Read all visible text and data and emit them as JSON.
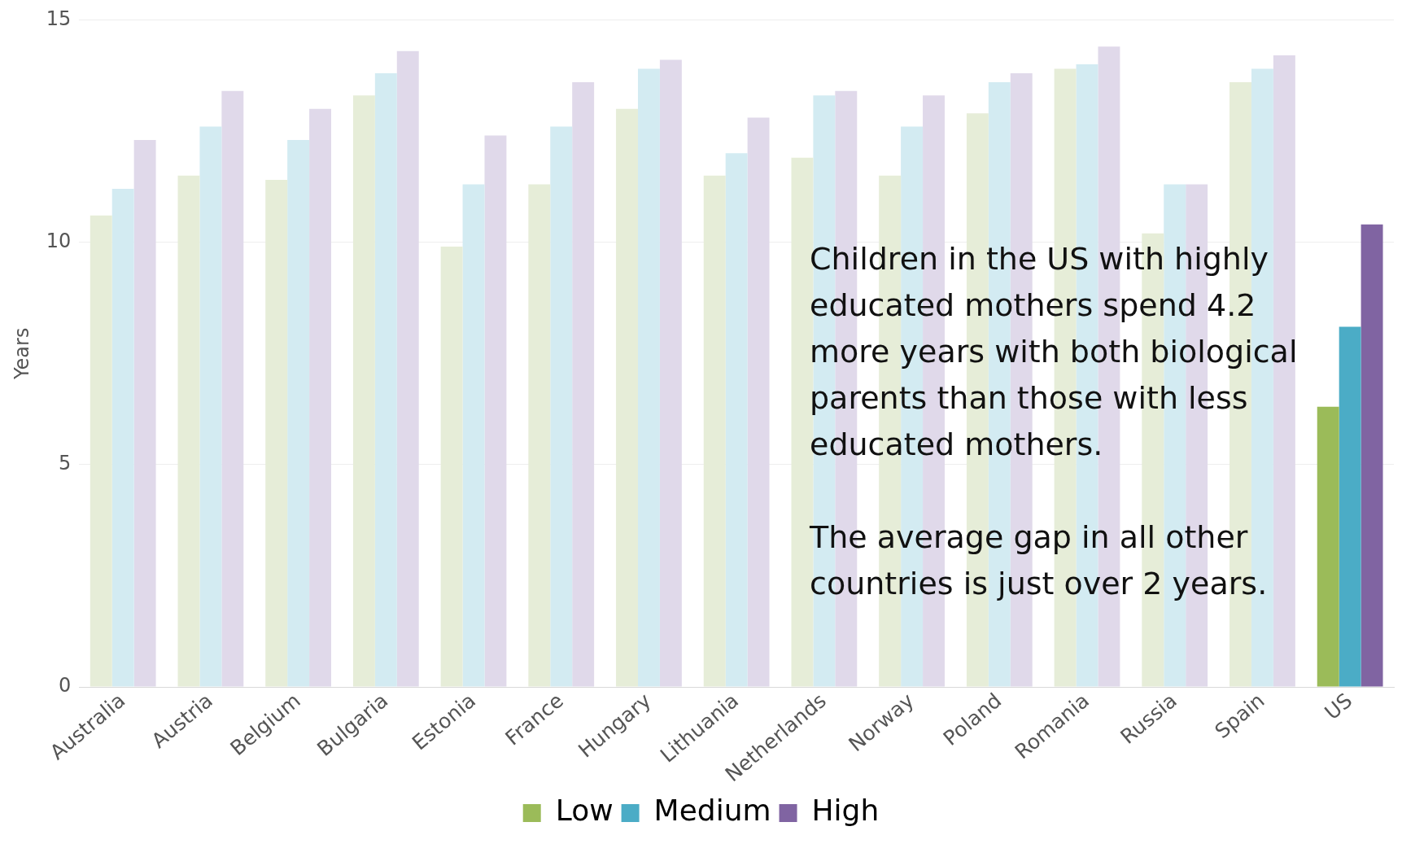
{
  "chart_data": {
    "type": "bar",
    "ylabel": "Years",
    "categories": [
      "Australia",
      "Austria",
      "Belgium",
      "Bulgaria",
      "Estonia",
      "France",
      "Hungary",
      "Lithuania",
      "Netherlands",
      "Norway",
      "Poland",
      "Romania",
      "Russia",
      "Spain",
      "US"
    ],
    "series": [
      {
        "name": "Low",
        "color": "#9bbb59",
        "colors": [
          "#e6edd8",
          "#e6edd8",
          "#e6edd8",
          "#e6edd8",
          "#e6edd8",
          "#e6edd8",
          "#e6edd8",
          "#e6edd8",
          "#e6edd8",
          "#e6edd8",
          "#e6edd8",
          "#e6edd8",
          "#e6edd8",
          "#e6edd8",
          "#9bbb59"
        ],
        "values": [
          10.6,
          11.5,
          11.4,
          13.3,
          9.9,
          11.3,
          13.0,
          11.5,
          11.9,
          11.5,
          12.9,
          13.9,
          10.2,
          13.6,
          6.3
        ]
      },
      {
        "name": "Medium",
        "color": "#4bacc6",
        "colors": [
          "#d3ebf2",
          "#d3ebf2",
          "#d3ebf2",
          "#d3ebf2",
          "#d3ebf2",
          "#d3ebf2",
          "#d3ebf2",
          "#d3ebf2",
          "#d3ebf2",
          "#d3ebf2",
          "#d3ebf2",
          "#d3ebf2",
          "#d3ebf2",
          "#d3ebf2",
          "#4bacc6"
        ],
        "values": [
          11.2,
          12.6,
          12.3,
          13.8,
          11.3,
          12.6,
          13.9,
          12.0,
          13.3,
          12.6,
          13.6,
          14.0,
          11.3,
          13.9,
          8.1
        ]
      },
      {
        "name": "High",
        "color": "#8064a2",
        "colors": [
          "#e0d9ea",
          "#e0d9ea",
          "#e0d9ea",
          "#e0d9ea",
          "#e0d9ea",
          "#e0d9ea",
          "#e0d9ea",
          "#e0d9ea",
          "#e0d9ea",
          "#e0d9ea",
          "#e0d9ea",
          "#e0d9ea",
          "#e0d9ea",
          "#e0d9ea",
          "#8064a2"
        ],
        "values": [
          12.3,
          13.4,
          13.0,
          14.3,
          12.4,
          13.6,
          14.1,
          12.8,
          13.4,
          13.3,
          13.8,
          14.4,
          11.3,
          14.2,
          10.4
        ]
      }
    ],
    "ylim": [
      0,
      15
    ],
    "yticks": [
      0,
      5,
      10,
      15
    ],
    "grid": "y",
    "legend": "bottom",
    "annotations": [
      "Children in the US with highly educated mothers spend 4.2 more years with both biological parents than those with less educated mothers.",
      "The average gap in all other countries is just over 2 years."
    ]
  }
}
